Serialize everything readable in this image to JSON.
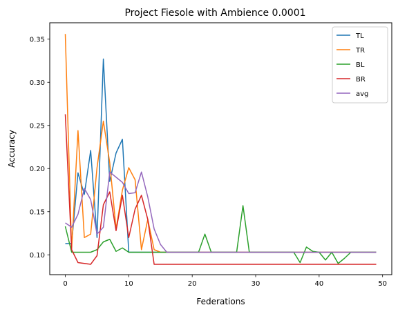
{
  "chart_data": {
    "type": "line",
    "title": "Project Fiesole with Ambience 0.0001",
    "xlabel": "Federations",
    "ylabel": "Accuracy",
    "xlim": [
      -2.45,
      51.45
    ],
    "ylim": [
      0.077,
      0.369
    ],
    "xticks": [
      0,
      10,
      20,
      30,
      40,
      50
    ],
    "xtick_labels": [
      "0",
      "10",
      "20",
      "30",
      "40",
      "50"
    ],
    "yticks": [
      0.1,
      0.15,
      0.2,
      0.25,
      0.3,
      0.35
    ],
    "ytick_labels": [
      "0.10",
      "0.15",
      "0.20",
      "0.25",
      "0.30",
      "0.35"
    ],
    "grid": false,
    "legend_position": "top-right",
    "x": [
      0,
      1,
      2,
      3,
      4,
      5,
      6,
      7,
      8,
      9,
      10,
      11,
      12,
      13,
      14,
      15,
      16,
      17,
      18,
      19,
      20,
      21,
      22,
      23,
      24,
      25,
      26,
      27,
      28,
      29,
      30,
      31,
      32,
      33,
      34,
      35,
      36,
      37,
      38,
      39,
      40,
      41,
      42,
      43,
      44,
      45,
      46,
      47,
      48,
      49
    ],
    "series": [
      {
        "name": "TL",
        "color": "#1f77b4",
        "values": [
          0.113,
          0.113,
          0.195,
          0.17,
          0.221,
          0.12,
          0.327,
          0.185,
          0.218,
          0.234,
          0.103,
          0.103,
          0.103,
          0.103,
          0.103,
          0.103,
          0.103,
          0.103,
          0.103,
          0.103,
          0.103,
          0.103,
          0.103,
          0.103,
          0.103,
          0.103,
          0.103,
          0.103,
          0.103,
          0.103,
          0.103,
          0.103,
          0.103,
          0.103,
          0.103,
          0.103,
          0.103,
          0.103,
          0.103,
          0.103,
          0.103,
          0.103,
          0.103,
          0.103,
          0.103,
          0.103,
          0.103,
          0.103,
          0.103,
          0.103
        ]
      },
      {
        "name": "TR",
        "color": "#ff7f0e",
        "values": [
          0.356,
          0.106,
          0.244,
          0.12,
          0.124,
          0.201,
          0.255,
          0.207,
          0.13,
          0.175,
          0.201,
          0.187,
          0.106,
          0.141,
          0.106,
          0.103,
          0.103,
          0.103,
          0.103,
          0.103,
          0.103,
          0.103,
          0.103,
          0.103,
          0.103,
          0.103,
          0.103,
          0.103,
          0.103,
          0.103,
          0.103,
          0.103,
          0.103,
          0.103,
          0.103,
          0.103,
          0.103,
          0.103,
          0.103,
          0.103,
          0.103,
          0.103,
          0.103,
          0.103,
          0.103,
          0.103,
          0.103,
          0.103,
          0.103,
          0.103
        ]
      },
      {
        "name": "BL",
        "color": "#2ca02c",
        "values": [
          0.133,
          0.103,
          0.103,
          0.103,
          0.103,
          0.106,
          0.115,
          0.118,
          0.104,
          0.108,
          0.103,
          0.103,
          0.103,
          0.103,
          0.103,
          0.103,
          0.103,
          0.103,
          0.103,
          0.103,
          0.103,
          0.103,
          0.124,
          0.103,
          0.103,
          0.103,
          0.103,
          0.103,
          0.157,
          0.103,
          0.103,
          0.103,
          0.103,
          0.103,
          0.103,
          0.103,
          0.103,
          0.091,
          0.109,
          0.104,
          0.103,
          0.094,
          0.103,
          0.09,
          0.096,
          0.103,
          0.103,
          0.103,
          0.103,
          0.103
        ]
      },
      {
        "name": "BR",
        "color": "#d62728",
        "values": [
          0.263,
          0.106,
          0.091,
          0.09,
          0.089,
          0.099,
          0.158,
          0.173,
          0.128,
          0.169,
          0.12,
          0.153,
          0.169,
          0.141,
          0.089,
          0.089,
          0.089,
          0.089,
          0.089,
          0.089,
          0.089,
          0.089,
          0.089,
          0.089,
          0.089,
          0.089,
          0.089,
          0.089,
          0.089,
          0.089,
          0.089,
          0.089,
          0.089,
          0.089,
          0.089,
          0.089,
          0.089,
          0.089,
          0.089,
          0.089,
          0.089,
          0.089,
          0.089,
          0.089,
          0.089,
          0.089,
          0.089,
          0.089,
          0.089,
          0.089
        ]
      },
      {
        "name": "avg",
        "color": "#9467bd",
        "values": [
          0.137,
          0.132,
          0.147,
          0.177,
          0.164,
          0.124,
          0.132,
          0.196,
          0.19,
          0.184,
          0.171,
          0.172,
          0.196,
          0.167,
          0.13,
          0.112,
          0.103,
          0.103,
          0.103,
          0.103,
          0.103,
          0.103,
          0.103,
          0.103,
          0.103,
          0.103,
          0.103,
          0.103,
          0.103,
          0.103,
          0.103,
          0.103,
          0.103,
          0.103,
          0.103,
          0.103,
          0.103,
          0.103,
          0.103,
          0.103,
          0.103,
          0.103,
          0.103,
          0.103,
          0.103,
          0.103,
          0.103,
          0.103,
          0.103,
          0.103
        ]
      }
    ]
  }
}
